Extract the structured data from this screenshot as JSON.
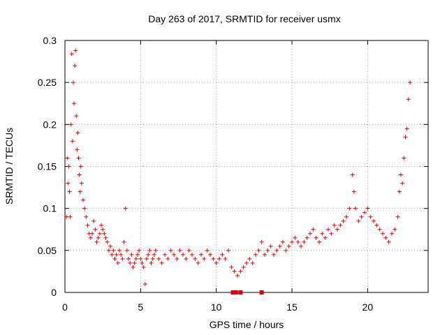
{
  "chart_data": {
    "type": "scatter",
    "title": "Day 263 of 2017, SRMTID for receiver usmx",
    "xlabel": "GPS time / hours",
    "ylabel": "SRMTID / TECUs",
    "xlim": [
      0,
      24
    ],
    "ylim": [
      0,
      0.3
    ],
    "x_ticks": [
      {
        "value": 0,
        "label": "0"
      },
      {
        "value": 5,
        "label": "5"
      },
      {
        "value": 10,
        "label": "10"
      },
      {
        "value": 15,
        "label": "15"
      },
      {
        "value": 20,
        "label": "20"
      }
    ],
    "y_ticks": [
      {
        "value": 0,
        "label": "0"
      },
      {
        "value": 0.05,
        "label": "0.05"
      },
      {
        "value": 0.1,
        "label": "0.1"
      },
      {
        "value": 0.15,
        "label": "0.15"
      },
      {
        "value": 0.2,
        "label": "0.2"
      },
      {
        "value": 0.25,
        "label": "0.25"
      },
      {
        "value": 0.3,
        "label": "0.3"
      }
    ],
    "grid": true,
    "marker": "+",
    "color": "#e00000",
    "series": [
      {
        "name": "SRMTID",
        "points": [
          [
            0.1,
            0.09
          ],
          [
            0.15,
            0.16
          ],
          [
            0.2,
            0.13
          ],
          [
            0.25,
            0.15
          ],
          [
            0.3,
            0.12
          ],
          [
            0.35,
            0.09
          ],
          [
            0.4,
            0.2
          ],
          [
            0.45,
            0.284
          ],
          [
            0.5,
            0.18
          ],
          [
            0.55,
            0.25
          ],
          [
            0.6,
            0.225
          ],
          [
            0.65,
            0.27
          ],
          [
            0.7,
            0.288
          ],
          [
            0.75,
            0.21
          ],
          [
            0.8,
            0.17
          ],
          [
            0.85,
            0.19
          ],
          [
            0.9,
            0.16
          ],
          [
            0.95,
            0.14
          ],
          [
            1.0,
            0.12
          ],
          [
            1.05,
            0.15
          ],
          [
            1.1,
            0.13
          ],
          [
            1.2,
            0.11
          ],
          [
            1.3,
            0.1
          ],
          [
            1.4,
            0.09
          ],
          [
            1.5,
            0.08
          ],
          [
            1.6,
            0.07
          ],
          [
            1.7,
            0.065
          ],
          [
            1.8,
            0.07
          ],
          [
            1.9,
            0.085
          ],
          [
            2.0,
            0.075
          ],
          [
            2.1,
            0.06
          ],
          [
            2.2,
            0.065
          ],
          [
            2.3,
            0.07
          ],
          [
            2.4,
            0.08
          ],
          [
            2.5,
            0.075
          ],
          [
            2.6,
            0.07
          ],
          [
            2.7,
            0.065
          ],
          [
            2.8,
            0.06
          ],
          [
            2.9,
            0.05
          ],
          [
            3.0,
            0.055
          ],
          [
            3.1,
            0.045
          ],
          [
            3.2,
            0.05
          ],
          [
            3.3,
            0.04
          ],
          [
            3.4,
            0.045
          ],
          [
            3.5,
            0.035
          ],
          [
            3.6,
            0.05
          ],
          [
            3.7,
            0.045
          ],
          [
            3.8,
            0.04
          ],
          [
            3.9,
            0.06
          ],
          [
            4.0,
            0.1
          ],
          [
            4.1,
            0.05
          ],
          [
            4.2,
            0.04
          ],
          [
            4.3,
            0.035
          ],
          [
            4.4,
            0.045
          ],
          [
            4.5,
            0.03
          ],
          [
            4.6,
            0.035
          ],
          [
            4.7,
            0.04
          ],
          [
            4.8,
            0.045
          ],
          [
            4.9,
            0.05
          ],
          [
            5.0,
            0.04
          ],
          [
            5.1,
            0.035
          ],
          [
            5.2,
            0.03
          ],
          [
            5.3,
            0.01
          ],
          [
            5.4,
            0.04
          ],
          [
            5.5,
            0.045
          ],
          [
            5.6,
            0.05
          ],
          [
            5.7,
            0.035
          ],
          [
            5.8,
            0.04
          ],
          [
            5.9,
            0.045
          ],
          [
            6.0,
            0.05
          ],
          [
            6.2,
            0.04
          ],
          [
            6.4,
            0.035
          ],
          [
            6.6,
            0.045
          ],
          [
            6.8,
            0.04
          ],
          [
            7.0,
            0.05
          ],
          [
            7.2,
            0.045
          ],
          [
            7.4,
            0.04
          ],
          [
            7.6,
            0.05
          ],
          [
            7.8,
            0.045
          ],
          [
            8.0,
            0.04
          ],
          [
            8.2,
            0.05
          ],
          [
            8.4,
            0.045
          ],
          [
            8.6,
            0.04
          ],
          [
            8.8,
            0.035
          ],
          [
            9.0,
            0.045
          ],
          [
            9.2,
            0.04
          ],
          [
            9.4,
            0.05
          ],
          [
            9.6,
            0.045
          ],
          [
            9.8,
            0.04
          ],
          [
            10.0,
            0.035
          ],
          [
            10.2,
            0.04
          ],
          [
            10.4,
            0.045
          ],
          [
            10.6,
            0.04
          ],
          [
            10.8,
            0.05
          ],
          [
            11.0,
            0.03
          ],
          [
            11.2,
            0.025
          ],
          [
            11.4,
            0.02
          ],
          [
            11.6,
            0.025
          ],
          [
            11.8,
            0.03
          ],
          [
            12.0,
            0.035
          ],
          [
            12.2,
            0.04
          ],
          [
            12.4,
            0.035
          ],
          [
            12.6,
            0.045
          ],
          [
            12.8,
            0.05
          ],
          [
            13.0,
            0.06
          ],
          [
            13.2,
            0.045
          ],
          [
            13.4,
            0.05
          ],
          [
            13.6,
            0.055
          ],
          [
            13.8,
            0.045
          ],
          [
            14.0,
            0.05
          ],
          [
            14.2,
            0.055
          ],
          [
            14.4,
            0.06
          ],
          [
            14.6,
            0.05
          ],
          [
            14.8,
            0.055
          ],
          [
            15.0,
            0.06
          ],
          [
            15.2,
            0.065
          ],
          [
            15.4,
            0.06
          ],
          [
            15.6,
            0.055
          ],
          [
            15.8,
            0.06
          ],
          [
            16.0,
            0.065
          ],
          [
            16.2,
            0.07
          ],
          [
            16.4,
            0.075
          ],
          [
            16.6,
            0.065
          ],
          [
            16.8,
            0.06
          ],
          [
            17.0,
            0.07
          ],
          [
            17.2,
            0.065
          ],
          [
            17.4,
            0.075
          ],
          [
            17.6,
            0.07
          ],
          [
            17.8,
            0.08
          ],
          [
            18.0,
            0.075
          ],
          [
            18.2,
            0.08
          ],
          [
            18.4,
            0.085
          ],
          [
            18.6,
            0.09
          ],
          [
            18.8,
            0.1
          ],
          [
            19.0,
            0.14
          ],
          [
            19.1,
            0.12
          ],
          [
            19.2,
            0.1
          ],
          [
            19.4,
            0.085
          ],
          [
            19.6,
            0.09
          ],
          [
            19.8,
            0.095
          ],
          [
            20.0,
            0.1
          ],
          [
            20.2,
            0.09
          ],
          [
            20.4,
            0.085
          ],
          [
            20.6,
            0.08
          ],
          [
            20.8,
            0.075
          ],
          [
            21.0,
            0.07
          ],
          [
            21.2,
            0.065
          ],
          [
            21.4,
            0.06
          ],
          [
            21.6,
            0.07
          ],
          [
            21.8,
            0.075
          ],
          [
            22.0,
            0.09
          ],
          [
            22.1,
            0.12
          ],
          [
            22.2,
            0.14
          ],
          [
            22.3,
            0.13
          ],
          [
            22.4,
            0.16
          ],
          [
            22.5,
            0.185
          ],
          [
            22.6,
            0.195
          ],
          [
            22.7,
            0.23
          ],
          [
            22.8,
            0.25
          ]
        ]
      }
    ],
    "annotations": [
      {
        "note": "square markers near zero",
        "points": [
          [
            11.1,
            0.0
          ],
          [
            11.3,
            0.0
          ],
          [
            11.6,
            0.0
          ],
          [
            13.0,
            0.0
          ]
        ]
      }
    ]
  }
}
